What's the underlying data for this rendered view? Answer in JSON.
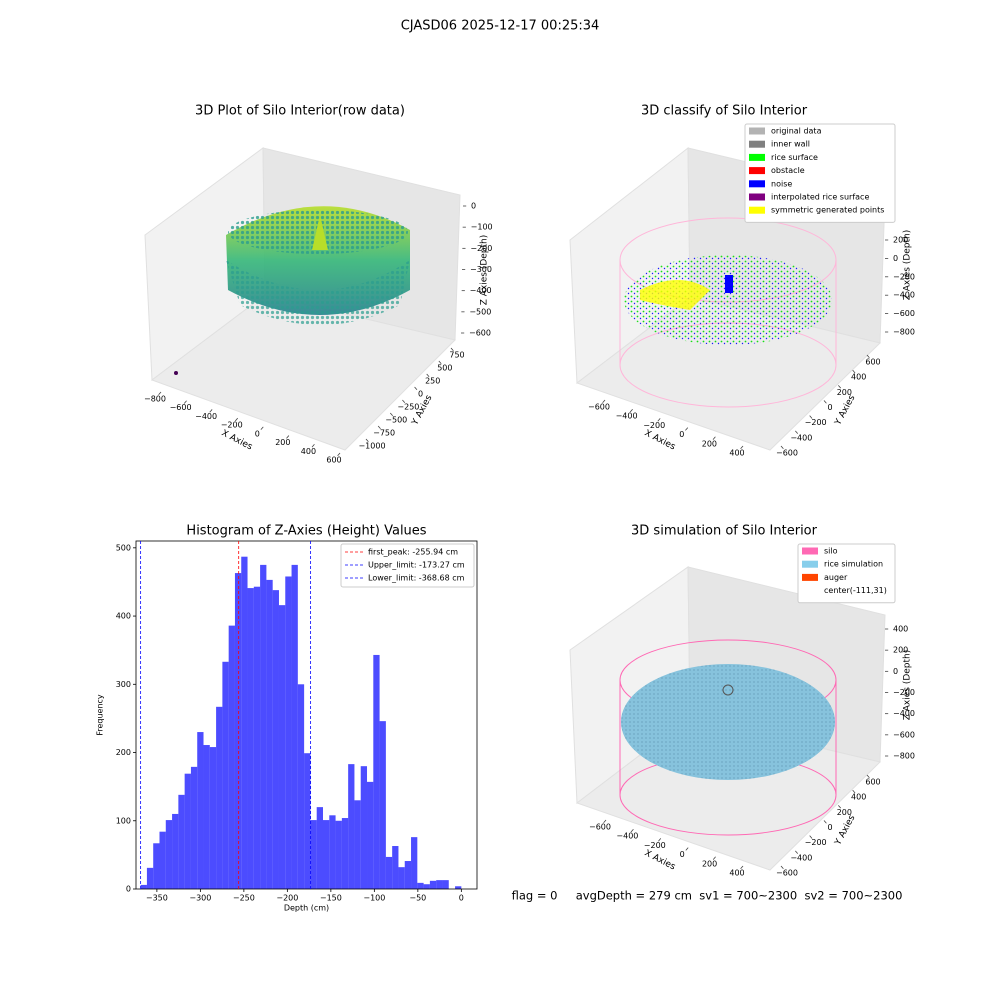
{
  "suptitle": "CJASD06 2025-12-17 00:25:34",
  "footer": "flag = 0     avgDepth = 279 cm  sv1 = 700~2300  sv2 = 700~2300",
  "chart_data": [
    {
      "type": "scatter3d",
      "title": "3D Plot of Silo Interior(row data)",
      "xlabel": "X Axies",
      "ylabel": "Y Axies",
      "zlabel": "Z Axies (Depth)",
      "xticks": [
        {
          "value": -800,
          "label": "−800"
        },
        {
          "value": -600,
          "label": "−600"
        },
        {
          "value": -400,
          "label": "−400"
        },
        {
          "value": -200,
          "label": "−200"
        },
        0,
        200,
        400,
        600
      ],
      "yticks": [
        750,
        500,
        250,
        0,
        {
          "value": -250,
          "label": "−250"
        },
        {
          "value": -500,
          "label": "−500"
        },
        {
          "value": -750,
          "label": "−750"
        },
        {
          "value": -1000,
          "label": "−1000"
        }
      ],
      "zticks": [
        0,
        {
          "value": -100,
          "label": "−100"
        },
        {
          "value": -200,
          "label": "−200"
        },
        {
          "value": -300,
          "label": "−300"
        },
        {
          "value": -400,
          "label": "−400"
        },
        {
          "value": -500,
          "label": "−500"
        },
        {
          "value": -600,
          "label": "−600"
        }
      ]
    },
    {
      "type": "scatter3d",
      "title": "3D classify of Silo Interior",
      "xlabel": "X Axies",
      "ylabel": "Y Axies",
      "zlabel": "Z Axies (Depth)",
      "xticks": [
        {
          "value": -600,
          "label": "−600"
        },
        {
          "value": -400,
          "label": "−400"
        },
        {
          "value": -200,
          "label": "−200"
        },
        0,
        200,
        400
      ],
      "yticks": [
        600,
        400,
        200,
        0,
        {
          "value": -200,
          "label": "−200"
        },
        {
          "value": -400,
          "label": "−400"
        },
        {
          "value": -600,
          "label": "−600"
        }
      ],
      "zticks": [
        200,
        0,
        {
          "value": -200,
          "label": "−200"
        },
        {
          "value": -400,
          "label": "−400"
        },
        {
          "value": -600,
          "label": "−600"
        },
        {
          "value": -800,
          "label": "−800"
        }
      ],
      "legend": [
        {
          "name": "original data",
          "color": "#b3b3b3"
        },
        {
          "name": "inner wall",
          "color": "#808080"
        },
        {
          "name": "rice surface",
          "color": "#00ff00"
        },
        {
          "name": "obstacle",
          "color": "#ff0000"
        },
        {
          "name": "noise",
          "color": "#0000ff"
        },
        {
          "name": "interpolated rice surface",
          "color": "#800080"
        },
        {
          "name": "symmetric generated points",
          "color": "#ffff00"
        }
      ]
    },
    {
      "type": "histogram",
      "title": "Histogram of Z-Axies (Height) Values",
      "xlabel": "Depth (cm)",
      "ylabel": "Frequency",
      "color": "#0000ff",
      "bins": [
        -368.68,
        -361.45,
        -354.22,
        -346.99,
        -339.76,
        -332.53,
        -325.31,
        -318.08,
        -310.85,
        -303.62,
        -296.39,
        -289.16,
        -281.93,
        -274.7,
        -267.47,
        -260.25,
        -253.02,
        -245.79,
        -238.56,
        -231.33,
        -224.1,
        -216.87,
        -209.64,
        -202.41,
        -195.18,
        -187.96,
        -180.73,
        -173.5,
        -166.27,
        -159.04,
        -151.81,
        -144.58,
        -137.35,
        -130.12,
        -122.89,
        -115.67,
        -108.44,
        -101.21,
        -93.98,
        -86.75,
        -79.52,
        -72.29,
        -65.06,
        -57.83,
        -50.6,
        -43.37,
        -36.15,
        -28.92,
        -21.69,
        -14.46,
        -7.23,
        0.0
      ],
      "counts": [
        6,
        31,
        67,
        84,
        101,
        110,
        138,
        169,
        179,
        230,
        211,
        208,
        267,
        333,
        386,
        463,
        487,
        441,
        443,
        475,
        453,
        438,
        416,
        458,
        475,
        300,
        199,
        101,
        120,
        101,
        108,
        100,
        104,
        183,
        130,
        180,
        157,
        343,
        246,
        47,
        63,
        32,
        41,
        76,
        9,
        7,
        12,
        13,
        13,
        0,
        4
      ],
      "xlim": [
        -374,
        18
      ],
      "ylim": [
        0,
        510
      ],
      "xticks": [
        {
          "value": -350,
          "label": "−350"
        },
        {
          "value": -300,
          "label": "−300"
        },
        {
          "value": -250,
          "label": "−250"
        },
        {
          "value": -200,
          "label": "−200"
        },
        {
          "value": -150,
          "label": "−150"
        },
        {
          "value": -100,
          "label": "−100"
        },
        {
          "value": -50,
          "label": "−50"
        },
        0
      ],
      "yticks": [
        0,
        100,
        200,
        300,
        400,
        500
      ],
      "lines": [
        {
          "name": "first_peak: -255.94 cm",
          "value": -255.94,
          "color": "#ff0000"
        },
        {
          "name": "Upper_limit: -173.27 cm",
          "value": -173.27,
          "color": "#0000ff"
        },
        {
          "name": "Lower_limit: -368.68 cm",
          "value": -368.68,
          "color": "#0000ff"
        }
      ],
      "legend_loc": "upper right"
    },
    {
      "type": "scatter3d",
      "title": "3D simulation of Silo Interior",
      "xlabel": "X Axies",
      "ylabel": "Y Axies",
      "zlabel": "Z Axies (Depth)",
      "xticks": [
        {
          "value": -600,
          "label": "−600"
        },
        {
          "value": -400,
          "label": "−400"
        },
        {
          "value": -200,
          "label": "−200"
        },
        0,
        200,
        400
      ],
      "yticks": [
        600,
        400,
        200,
        0,
        {
          "value": -200,
          "label": "−200"
        },
        {
          "value": -400,
          "label": "−400"
        },
        {
          "value": -600,
          "label": "−600"
        }
      ],
      "zticks": [
        400,
        200,
        0,
        {
          "value": -200,
          "label": "−200"
        },
        {
          "value": -400,
          "label": "−400"
        },
        {
          "value": -600,
          "label": "−600"
        },
        {
          "value": -800,
          "label": "−800"
        }
      ],
      "legend": [
        {
          "name": "silo",
          "color": "#ff69b4"
        },
        {
          "name": "rice simulation",
          "color": "#87ceeb"
        },
        {
          "name": "auger",
          "color": "#ff4500"
        },
        {
          "name": "center(-111,31)",
          "color": "#ffffff"
        }
      ]
    }
  ]
}
